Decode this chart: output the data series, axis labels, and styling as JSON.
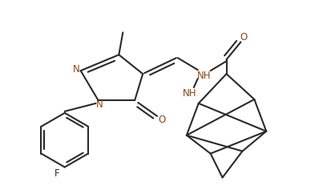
{
  "bg": "#ffffff",
  "lc": "#2a2a2a",
  "nc": "#8B4513",
  "oc": "#8B4513",
  "fc": "#2a2a2a",
  "lw": 1.5,
  "fig_w": 4.13,
  "fig_h": 2.37,
  "dpi": 100,
  "xlim": [
    0,
    413
  ],
  "ylim": [
    0,
    237
  ]
}
